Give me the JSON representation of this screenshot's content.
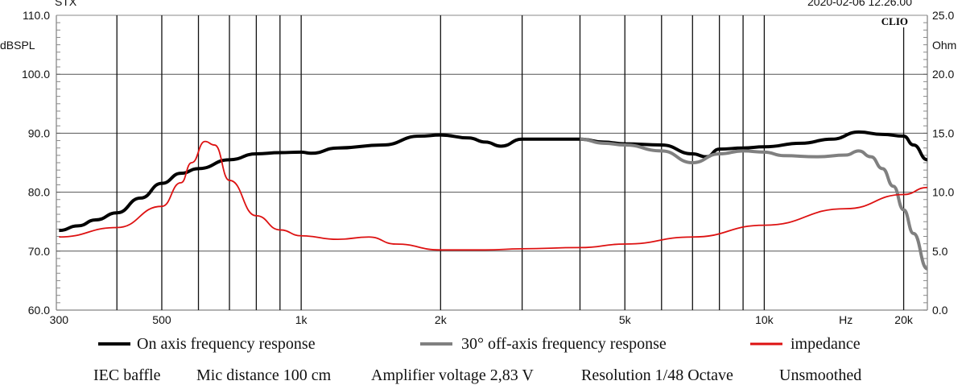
{
  "chart_data": {
    "type": "line",
    "title_left": "STX",
    "title_right": "2020-02-06 12.26.00",
    "brand": "CLIO",
    "xlabel": "Hz",
    "ylabel": "dBSPL",
    "y2label": "Ohm",
    "xscale": "log",
    "xlim": [
      296,
      22500
    ],
    "ylim": [
      60,
      110
    ],
    "y2lim": [
      0,
      25
    ],
    "xticks": [
      {
        "v": 300,
        "label": "300"
      },
      {
        "v": 500,
        "label": "500"
      },
      {
        "v": 1000,
        "label": "1k"
      },
      {
        "v": 2000,
        "label": "2k"
      },
      {
        "v": 5000,
        "label": "5k"
      },
      {
        "v": 10000,
        "label": "10k"
      },
      {
        "v": 15000,
        "label": "Hz"
      },
      {
        "v": 20000,
        "label": "20k"
      }
    ],
    "yticks": [
      "60.0",
      "70.0",
      "80.0",
      "90.0",
      "100.0",
      "110.0"
    ],
    "y2ticks": [
      "0.0",
      "5.0",
      "10.0",
      "15.0",
      "20.0",
      "25.0"
    ],
    "vgrid": [
      400,
      500,
      600,
      700,
      800,
      900,
      1000,
      2000,
      3000,
      4000,
      5000,
      6000,
      7000,
      8000,
      9000,
      10000,
      20000
    ],
    "series": [
      {
        "name": "On axis frequency response",
        "color": "#000000",
        "axis": "left",
        "x": [
          300,
          330,
          360,
          400,
          450,
          500,
          550,
          600,
          700,
          800,
          900,
          1000,
          1050,
          1200,
          1500,
          1800,
          2000,
          2300,
          2500,
          2700,
          3000,
          3500,
          4000,
          4500,
          5000,
          6000,
          7000,
          7500,
          8000,
          9000,
          10000,
          12000,
          14000,
          16000,
          18000,
          20000,
          21000,
          22500
        ],
        "y": [
          73.5,
          74.3,
          75.3,
          76.5,
          79,
          81.5,
          83.2,
          84,
          85.5,
          86.5,
          86.7,
          86.8,
          86.6,
          87.5,
          88,
          89.5,
          89.7,
          89.2,
          88.5,
          87.8,
          89,
          89,
          89,
          88.5,
          88.2,
          88,
          86.5,
          86,
          87.3,
          87.5,
          87.7,
          88.3,
          89,
          90.2,
          89.8,
          89.5,
          88,
          85.5
        ]
      },
      {
        "name": "30° off-axis frequency response",
        "color": "#808080",
        "axis": "left",
        "x": [
          4000,
          4500,
          5000,
          6000,
          7000,
          8000,
          9000,
          10000,
          11000,
          13000,
          15000,
          16000,
          17000,
          18000,
          19000,
          20000,
          21000,
          22500
        ],
        "y": [
          89,
          88.3,
          88,
          87,
          85,
          86.5,
          87,
          86.8,
          86.2,
          86,
          86.3,
          87,
          86,
          84,
          81,
          77,
          73,
          67
        ]
      },
      {
        "name": "impedance",
        "color": "#dd1111",
        "axis": "right",
        "x": [
          300,
          400,
          500,
          550,
          580,
          620,
          650,
          700,
          800,
          900,
          1000,
          1200,
          1400,
          1600,
          2000,
          2500,
          3000,
          4000,
          5000,
          7000,
          10000,
          15000,
          20000,
          22500
        ],
        "y": [
          6.2,
          7,
          8.8,
          10.8,
          12.5,
          14.3,
          14,
          11,
          8,
          6.8,
          6.3,
          6.0,
          6.2,
          5.6,
          5.1,
          5.1,
          5.2,
          5.3,
          5.6,
          6.2,
          7.2,
          8.6,
          9.8,
          10.4
        ]
      }
    ],
    "legend_position": "bottom",
    "footer": [
      "IEC baffle",
      "Mic distance 100 cm",
      "Amplifier voltage 2,83 V",
      "Resolution 1/48 Octave",
      "Unsmoothed"
    ]
  }
}
